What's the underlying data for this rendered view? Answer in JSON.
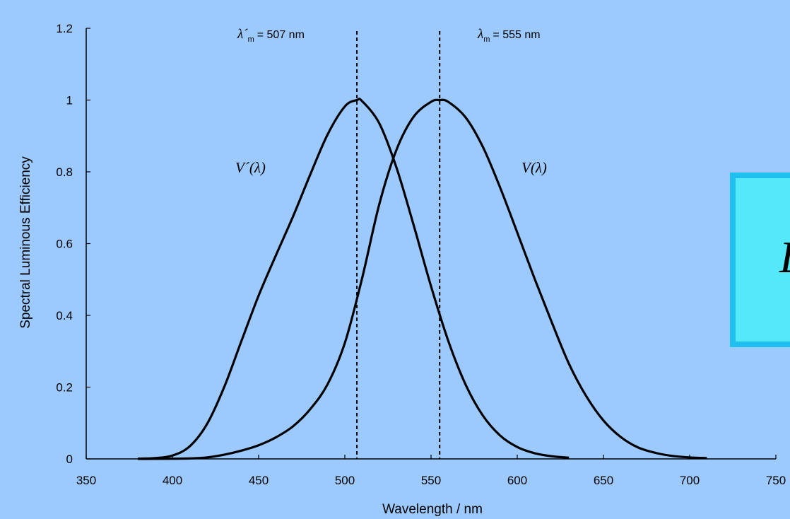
{
  "colors": {
    "background": "#9ccaff",
    "line": "#000000",
    "box_fill": "#55e8fb",
    "box_border": "#1fc0f0"
  },
  "overlay": {
    "letter": "L"
  },
  "chart_data": {
    "type": "line",
    "xlabel": "Wavelength / nm",
    "ylabel": "Spectral Luminous Efficiency",
    "xlim": [
      350,
      750
    ],
    "ylim": [
      0,
      1.2
    ],
    "x_ticks": [
      "350",
      "400",
      "450",
      "500",
      "550",
      "600",
      "650",
      "700",
      "750"
    ],
    "y_ticks": [
      "0",
      "0.2",
      "0.4",
      "0.6",
      "0.8",
      "1",
      "1.2"
    ],
    "grid": false,
    "series": [
      {
        "name": "V´(λ)",
        "x": [
          380,
          390,
          400,
          410,
          420,
          430,
          440,
          450,
          460,
          470,
          480,
          490,
          500,
          507,
          510,
          520,
          530,
          540,
          550,
          560,
          570,
          580,
          590,
          600,
          610,
          620,
          630
        ],
        "y": [
          0.0006,
          0.0022,
          0.0093,
          0.0348,
          0.0966,
          0.1998,
          0.3281,
          0.455,
          0.567,
          0.676,
          0.793,
          0.904,
          0.982,
          1.0,
          0.997,
          0.935,
          0.811,
          0.65,
          0.481,
          0.3288,
          0.2076,
          0.1212,
          0.0655,
          0.0332,
          0.0159,
          0.0074,
          0.0033
        ]
      },
      {
        "name": "V(λ)",
        "x": [
          380,
          390,
          400,
          410,
          420,
          430,
          440,
          450,
          460,
          470,
          480,
          490,
          500,
          510,
          520,
          530,
          540,
          550,
          555,
          560,
          570,
          580,
          590,
          600,
          610,
          620,
          630,
          640,
          650,
          660,
          670,
          680,
          690,
          700,
          710
        ],
        "y": [
          0.0,
          0.0001,
          0.0004,
          0.0012,
          0.004,
          0.0116,
          0.023,
          0.038,
          0.06,
          0.091,
          0.139,
          0.208,
          0.323,
          0.503,
          0.71,
          0.862,
          0.954,
          0.995,
          1.0,
          0.995,
          0.952,
          0.87,
          0.757,
          0.631,
          0.503,
          0.381,
          0.265,
          0.175,
          0.107,
          0.061,
          0.032,
          0.017,
          0.0082,
          0.0041,
          0.0021
        ]
      }
    ],
    "reference_lines": [
      {
        "x": 507,
        "label_symbol": "λ´",
        "label_subscript": "m",
        "label_value": "= 507 nm"
      },
      {
        "x": 555,
        "label_symbol": "λ",
        "label_subscript": "m",
        "label_value": "= 555 nm"
      }
    ]
  }
}
